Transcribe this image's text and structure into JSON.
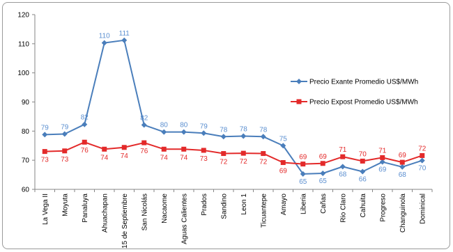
{
  "chart_data": {
    "type": "line",
    "title": "",
    "xlabel": "",
    "ylabel": "",
    "ylim": [
      60,
      120
    ],
    "yticks": [
      60,
      70,
      80,
      90,
      100,
      110,
      120
    ],
    "grid": false,
    "legend_position": "right",
    "categories": [
      "La Vega II",
      "Moyuta",
      "Panaluya",
      "Ahuachapan",
      "15 de Septiembre",
      "San Nicolás",
      "Nacaome",
      "Aguas Calientes",
      "Prados",
      "Sandino",
      "Leon 1",
      "Ticuantepe",
      "Amayo",
      "Liberia",
      "Cañas",
      "Rio Claro",
      "Cahuita",
      "Progreso",
      "Changuinola",
      "Dominical"
    ],
    "series": [
      {
        "name": "Precio Exante Promedio US$/MWh",
        "color": "#4A7EBB",
        "marker": "diamond",
        "label_color": "#5B8FD0",
        "values": [
          78.8,
          79.0,
          82.3,
          110.3,
          111.2,
          82.1,
          79.7,
          79.7,
          79.3,
          78.1,
          78.3,
          78.1,
          75.0,
          65.3,
          65.5,
          67.8,
          66.1,
          69.4,
          67.7,
          69.9
        ],
        "labels": [
          "79",
          "79",
          "82",
          "110",
          "111",
          "82",
          "80",
          "80",
          "79",
          "78",
          "78",
          "78",
          "75",
          "65",
          "65",
          "68",
          "66",
          "69",
          "68",
          "70"
        ]
      },
      {
        "name": "Precio Expost Promedio US$/MWh",
        "color": "#E32A2A",
        "marker": "square",
        "label_color": "#E32A2A",
        "values": [
          73.0,
          73.2,
          76.2,
          73.8,
          74.4,
          76.0,
          73.8,
          73.8,
          73.4,
          72.3,
          72.4,
          72.3,
          69.2,
          68.7,
          68.9,
          71.2,
          69.7,
          70.9,
          69.3,
          71.6
        ],
        "labels": [
          "73",
          "73",
          "76",
          "74",
          "74",
          "76",
          "74",
          "74",
          "73",
          "72",
          "72",
          "72",
          "69",
          "69",
          "69",
          "71",
          "70",
          "71",
          "69",
          "72"
        ]
      }
    ]
  }
}
